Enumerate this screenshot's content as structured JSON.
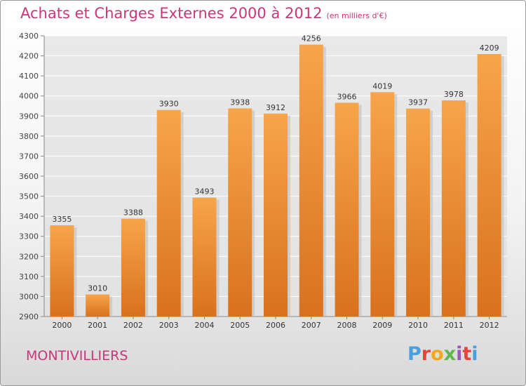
{
  "header": {
    "title": "Achats et Charges Externes 2000 à 2012",
    "subtitle": "(en milliers d'€)"
  },
  "footer": {
    "city": "MONTIVILLIERS",
    "logo": "Proxiti",
    "logo_colors": [
      "#4aa0dc",
      "#e8443a",
      "#f2a81d",
      "#5cb848",
      "#9b59b6",
      "#e8443a",
      "#4aa0dc"
    ]
  },
  "colors": {
    "bar_top": "#f7a54a",
    "bar_bottom": "#d9711d",
    "title": "#c8377a"
  },
  "chart_data": {
    "type": "bar",
    "categories": [
      "2000",
      "2001",
      "2002",
      "2003",
      "2004",
      "2005",
      "2006",
      "2007",
      "2008",
      "2009",
      "2010",
      "2011",
      "2012"
    ],
    "values": [
      3355,
      3010,
      3388,
      3930,
      3493,
      3938,
      3912,
      4256,
      3966,
      4019,
      3937,
      3978,
      4209
    ],
    "ylim": [
      2900,
      4300
    ],
    "yticks": [
      2900,
      3000,
      3100,
      3200,
      3300,
      3400,
      3500,
      3600,
      3700,
      3800,
      3900,
      4000,
      4100,
      4200,
      4300
    ],
    "grid": true
  }
}
